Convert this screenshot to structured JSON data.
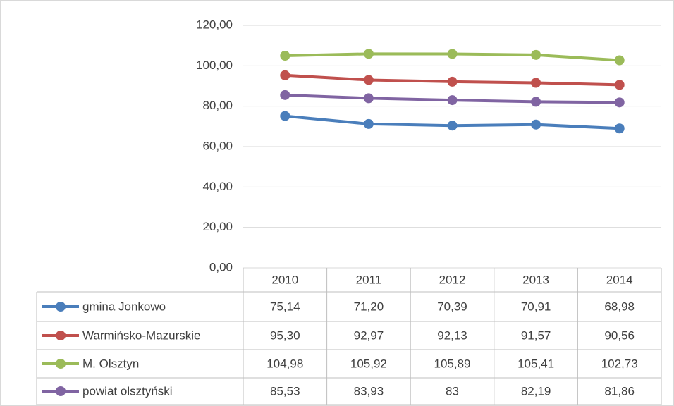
{
  "chart_data": {
    "type": "line",
    "categories": [
      "2010",
      "2011",
      "2012",
      "2013",
      "2014"
    ],
    "series": [
      {
        "name": "gmina Jonkowo",
        "color": "#4a7ebb",
        "values": [
          75.14,
          71.2,
          70.39,
          70.91,
          68.98
        ],
        "value_labels": [
          "75,14",
          "71,20",
          "70,39",
          "70,91",
          "68,98"
        ]
      },
      {
        "name": "Warmińsko-Mazurskie",
        "color": "#c0504d",
        "values": [
          95.3,
          92.97,
          92.13,
          91.57,
          90.56
        ],
        "value_labels": [
          "95,30",
          "92,97",
          "92,13",
          "91,57",
          "90,56"
        ]
      },
      {
        "name": "M. Olsztyn",
        "color": "#9bbb59",
        "values": [
          104.98,
          105.92,
          105.89,
          105.41,
          102.73
        ],
        "value_labels": [
          "104,98",
          "105,92",
          "105,89",
          "105,41",
          "102,73"
        ]
      },
      {
        "name": "powiat olsztyński",
        "color": "#8064a2",
        "values": [
          85.53,
          83.93,
          83,
          82.19,
          81.86
        ],
        "value_labels": [
          "85,53",
          "83,93",
          "83",
          "82,19",
          "81,86"
        ]
      }
    ],
    "ylim": [
      0,
      120
    ],
    "yticks": [
      {
        "value": 0,
        "label": "0,00"
      },
      {
        "value": 20,
        "label": "20,00"
      },
      {
        "value": 40,
        "label": "40,00"
      },
      {
        "value": 60,
        "label": "60,00"
      },
      {
        "value": 80,
        "label": "80,00"
      },
      {
        "value": 100,
        "label": "100,00"
      },
      {
        "value": 120,
        "label": "120,00"
      }
    ],
    "grid": true
  }
}
